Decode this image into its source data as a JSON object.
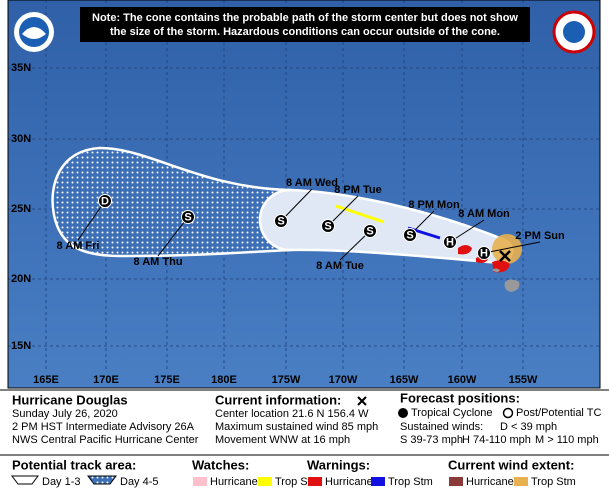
{
  "note": [
    "Note: The cone contains the probable path of the storm center but does not show",
    "the size of the storm. Hazardous conditions can occur outside of the cone."
  ],
  "map": {
    "latitudes": [
      "35N",
      "30N",
      "25N",
      "20N",
      "15N"
    ],
    "longitudes": [
      "165E",
      "170E",
      "175E",
      "180E",
      "175W",
      "170W",
      "165W",
      "160W",
      "155W"
    ],
    "positions": [
      {
        "symbol": "D",
        "label": "8 AM Fri"
      },
      {
        "symbol": "S",
        "label": "8 AM Thu"
      },
      {
        "symbol": "S",
        "label": "8 AM Wed"
      },
      {
        "symbol": "S",
        "label": "8 PM Tue"
      },
      {
        "symbol": "S",
        "label": "8 AM Tue"
      },
      {
        "symbol": "S",
        "label": "8 PM Mon"
      },
      {
        "symbol": "H",
        "label": "8 AM Mon"
      },
      {
        "symbol": "H",
        "label": "2 PM Sun"
      }
    ]
  },
  "storm": {
    "name": "Hurricane Douglas",
    "date": "Sunday July 26, 2020",
    "advisory": "2 PM HST Intermediate Advisory 26A",
    "center": "NWS Central Pacific Hurricane Center"
  },
  "current": {
    "title": "Current information:",
    "location": "Center location 21.6 N 156.4 W",
    "wind": "Maximum sustained wind 85 mph",
    "movement": "Movement WNW at 16 mph"
  },
  "forecast": {
    "title": "Forecast positions:",
    "tropical": "Tropical Cyclone",
    "post": "Post/Potential TC",
    "winds_title": "Sustained winds:",
    "d": "D < 39 mph",
    "s": "S 39-73 mph",
    "h": "H 74-110 mph",
    "m": "M > 110 mph"
  },
  "legend": {
    "track": {
      "title": "Potential track area:",
      "day13": "Day 1-3",
      "day45": "Day 4-5"
    },
    "watches": {
      "title": "Watches:",
      "hurricane": "Hurricane",
      "trop": "Trop Stm"
    },
    "warnings": {
      "title": "Warnings:",
      "hurricane": "Hurricane",
      "trop": "Trop Stm"
    },
    "wind": {
      "title": "Current wind extent:",
      "hurricane": "Hurricane",
      "trop": "Trop Stm"
    }
  }
}
